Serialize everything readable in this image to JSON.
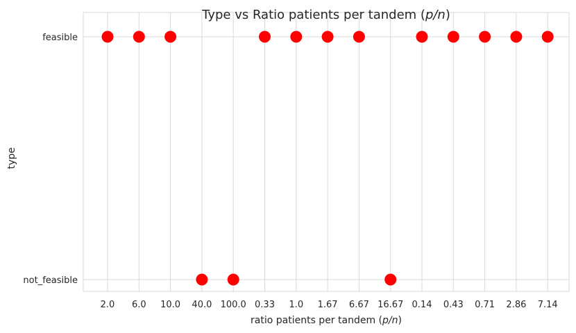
{
  "chart_data": {
    "type": "scatter",
    "title_prefix": "Type vs Ratio patients per tandem (",
    "title_math": "p/n",
    "title_suffix": ")",
    "xlabel_prefix": "ratio patients per tandem (",
    "xlabel_math": "p/n",
    "xlabel_suffix": ")",
    "ylabel": "type",
    "x_categories": [
      "2.0",
      "6.0",
      "10.0",
      "40.0",
      "100.0",
      "0.33",
      "1.0",
      "1.67",
      "6.67",
      "16.67",
      "0.14",
      "0.43",
      "0.71",
      "2.86",
      "7.14"
    ],
    "y_categories": [
      "feasible",
      "not_feasible"
    ],
    "points": [
      {
        "x": "2.0",
        "y": "feasible"
      },
      {
        "x": "6.0",
        "y": "feasible"
      },
      {
        "x": "10.0",
        "y": "feasible"
      },
      {
        "x": "40.0",
        "y": "not_feasible"
      },
      {
        "x": "100.0",
        "y": "not_feasible"
      },
      {
        "x": "0.33",
        "y": "feasible"
      },
      {
        "x": "1.0",
        "y": "feasible"
      },
      {
        "x": "1.67",
        "y": "feasible"
      },
      {
        "x": "6.67",
        "y": "feasible"
      },
      {
        "x": "16.67",
        "y": "not_feasible"
      },
      {
        "x": "0.14",
        "y": "feasible"
      },
      {
        "x": "0.43",
        "y": "feasible"
      },
      {
        "x": "0.71",
        "y": "feasible"
      },
      {
        "x": "2.86",
        "y": "feasible"
      },
      {
        "x": "7.14",
        "y": "feasible"
      }
    ],
    "marker_color": "#ff0000",
    "grid": true
  }
}
